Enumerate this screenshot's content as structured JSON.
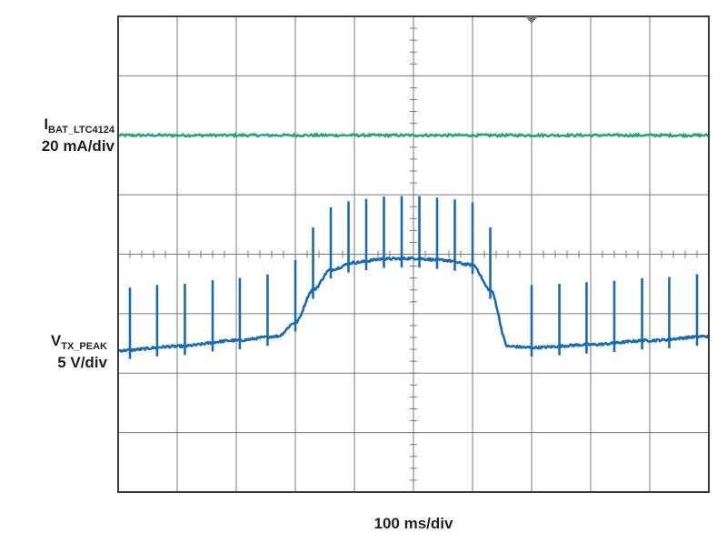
{
  "chart_data": {
    "type": "line",
    "title": "",
    "grid": true,
    "grid_divisions": {
      "x": 10,
      "y": 8
    },
    "time_scale": "100 ms/div",
    "x_range_div": [
      0,
      10
    ],
    "y_range_div": [
      0,
      8
    ],
    "trigger_marker_div": 7,
    "series": [
      {
        "name": "IBAT_LTC4124",
        "name_main": "I",
        "name_sub": "BAT_LTC4124",
        "scale": "20 mA/div",
        "color": "#1aa774",
        "x_div": [
          0,
          10
        ],
        "y_div": [
          6.0,
          6.0
        ],
        "noise_div": 0.02
      },
      {
        "name": "VTX_PEAK",
        "name_main": "V",
        "name_sub": "TX_PEAK",
        "scale": "5 V/div",
        "color": "#1a6bb0",
        "baseline": {
          "x_div": [
            0,
            1,
            2,
            2.7,
            3.0,
            3.3,
            3.6,
            4.0,
            4.5,
            5.0,
            5.5,
            6.0,
            6.3,
            6.6,
            7.0,
            8.0,
            9.0,
            10.0
          ],
          "y_div": [
            2.38,
            2.45,
            2.55,
            2.62,
            2.85,
            3.4,
            3.74,
            3.86,
            3.92,
            3.93,
            3.9,
            3.82,
            3.4,
            2.45,
            2.43,
            2.48,
            2.55,
            2.62
          ]
        },
        "spikes_x_div": [
          0.2,
          0.66,
          1.13,
          1.6,
          2.06,
          2.53,
          3.0,
          3.3,
          3.6,
          3.9,
          4.2,
          4.5,
          4.8,
          5.1,
          5.4,
          5.7,
          6.0,
          6.3,
          7.0,
          7.47,
          7.93,
          8.4,
          8.87,
          9.33,
          9.8
        ],
        "spike_height_div": 1.05
      }
    ]
  }
}
